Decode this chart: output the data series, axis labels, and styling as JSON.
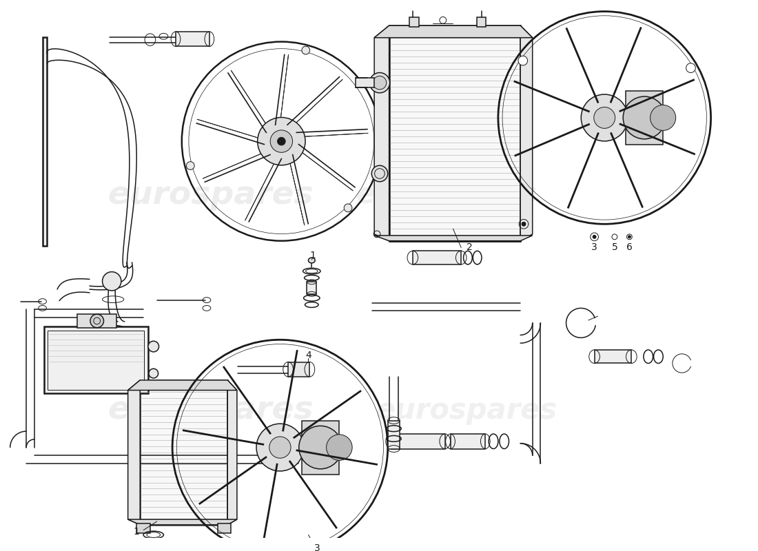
{
  "bg_color": "#ffffff",
  "line_color": "#1a1a1a",
  "watermark_color": "#d0d0d0",
  "lw_thin": 0.7,
  "lw_med": 1.1,
  "lw_thick": 1.8,
  "label_fontsize": 10
}
